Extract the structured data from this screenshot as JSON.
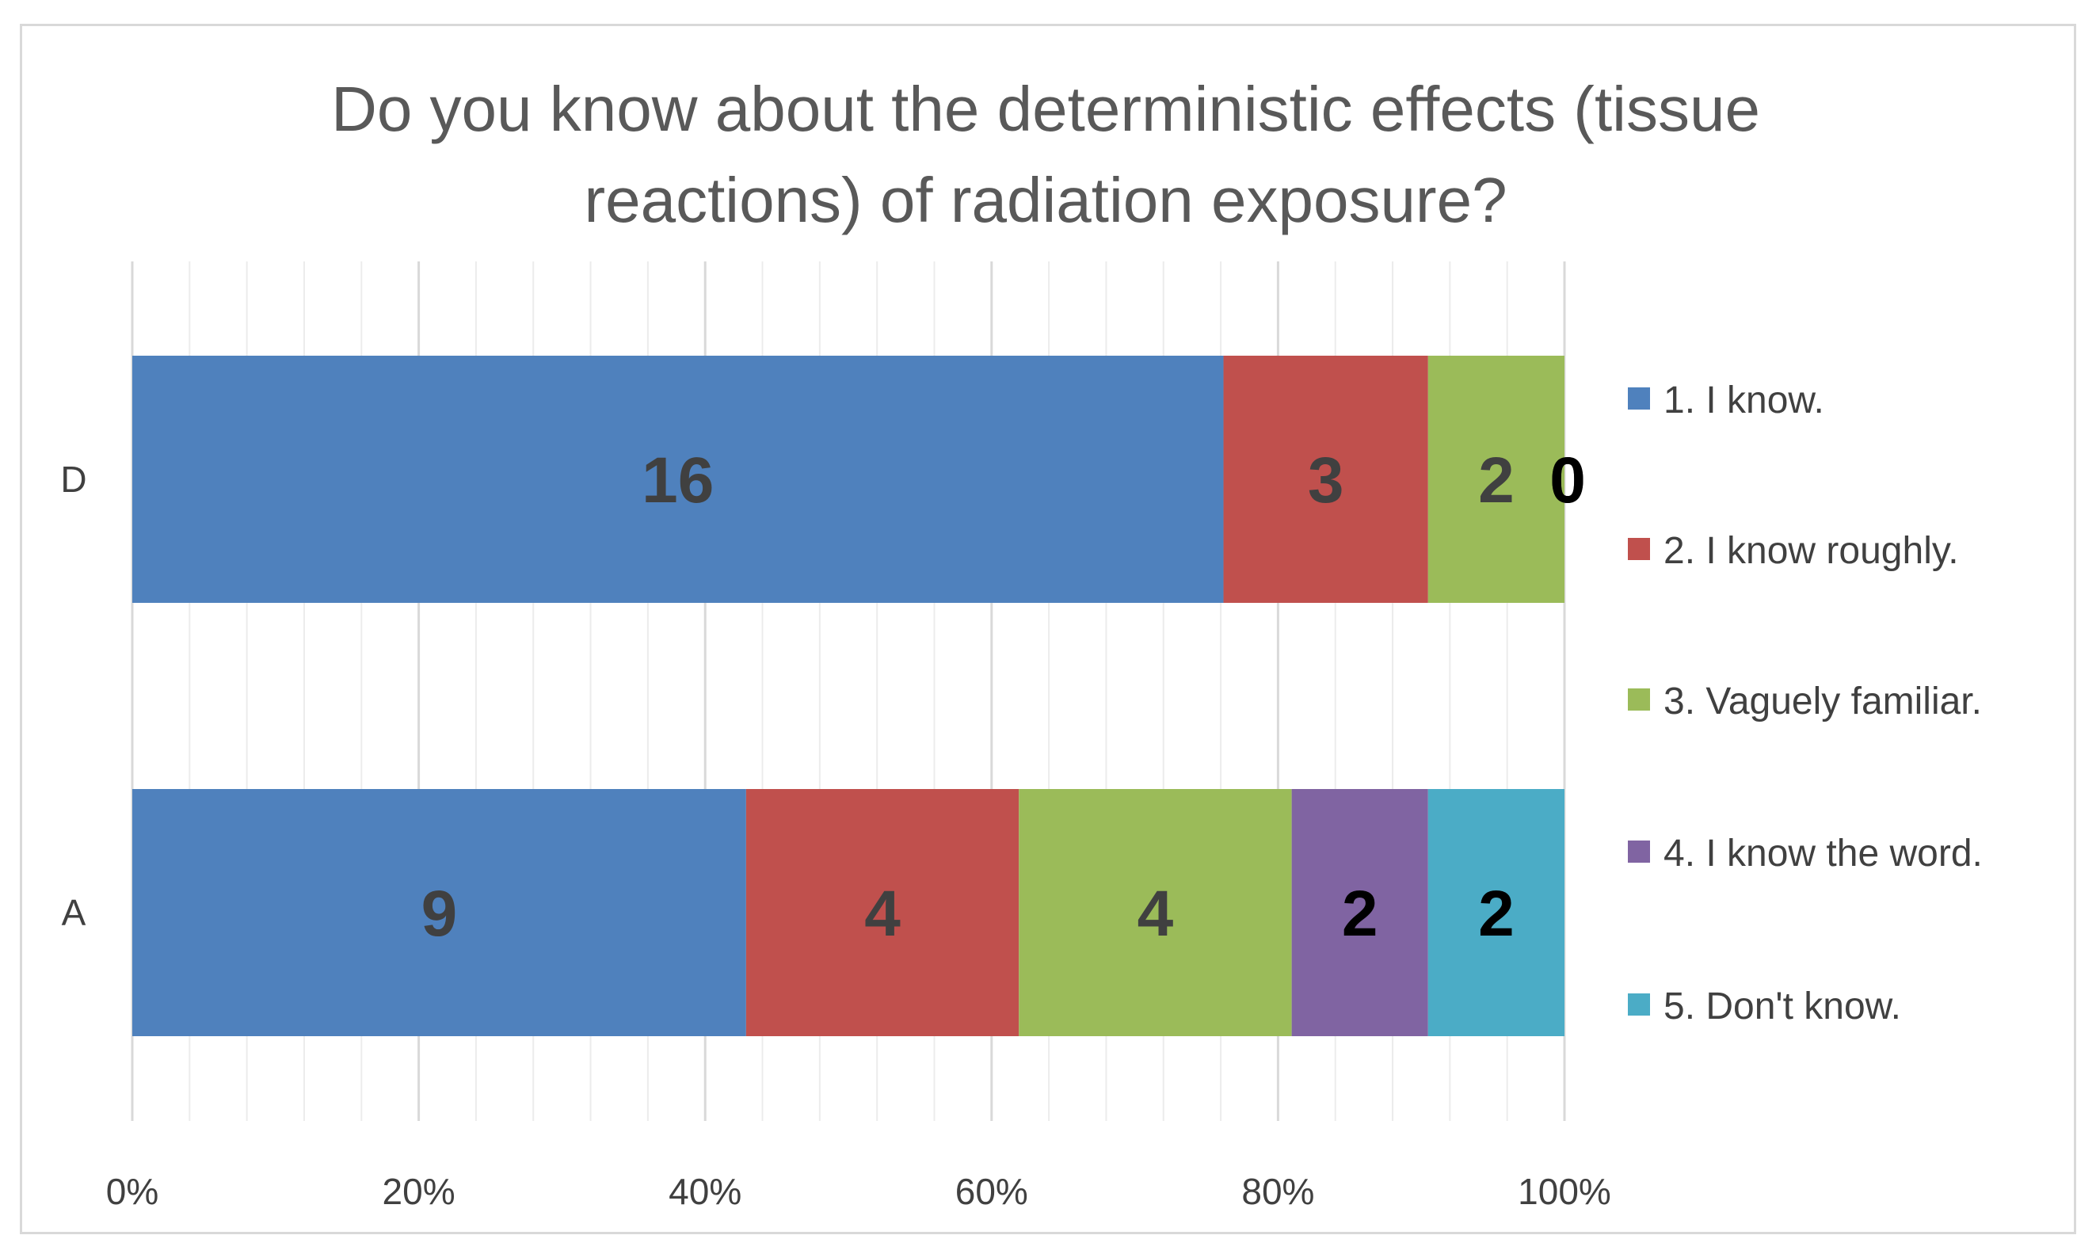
{
  "chart_data": {
    "type": "bar",
    "orientation": "horizontal",
    "stacked": "percent",
    "title": "Do you know about the deterministic effects (tissue reactions) of radiation exposure?",
    "title_lines": [
      "Do you know about the deterministic effects (tissue",
      "reactions) of radiation exposure?"
    ],
    "categories": [
      "D",
      "A"
    ],
    "series": [
      {
        "name": "1. I know.",
        "color": "#4f81bd",
        "label_color": "#404040",
        "values": [
          16,
          9
        ]
      },
      {
        "name": "2. I know roughly.",
        "color": "#c0504d",
        "label_color": "#404040",
        "values": [
          3,
          4
        ]
      },
      {
        "name": "3. Vaguely familiar.",
        "color": "#9bbb59",
        "label_color": "#404040",
        "values": [
          2,
          4
        ]
      },
      {
        "name": "4. I know the word.",
        "color": "#8064a2",
        "label_color": "#000000",
        "values": [
          0,
          2
        ]
      },
      {
        "name": "5. Don't know.",
        "color": "#4bacc6",
        "label_color": "#000000",
        "values": [
          0,
          2
        ]
      }
    ],
    "x_ticks": [
      "0%",
      "20%",
      "40%",
      "60%",
      "80%",
      "100%"
    ],
    "xlim": [
      0,
      100
    ],
    "grid": true,
    "legend_position": "right",
    "xlabel": "",
    "ylabel": ""
  }
}
